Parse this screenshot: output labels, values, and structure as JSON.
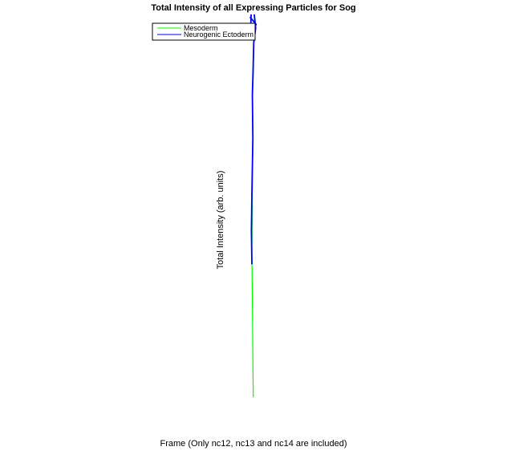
{
  "chart_data": {
    "type": "line",
    "title": "Total Intensity of all Expressing Particles for Sog",
    "xlabel": "Frame (Only nc12, nc13 and nc14 are included)",
    "ylabel": "Total Intensity (arb. units)",
    "grid": false,
    "legend_placement": "top-left",
    "colors": {
      "Mesoderm": "#00ff00",
      "Neurogenic Ectoderm": "#0000ff"
    },
    "xlim": [
      0,
      100
    ],
    "ylim": [
      0,
      100
    ],
    "series": [
      {
        "name": "Mesoderm",
        "x": [
          51.3,
          51.2,
          51.1,
          51.0,
          51.1,
          51.2,
          51.1,
          51.3,
          51.4,
          51.3,
          51.5,
          51.6
        ],
        "y": [
          0,
          10,
          27,
          38,
          58,
          70,
          80,
          88,
          95,
          98,
          100,
          110
        ]
      },
      {
        "name": "Neurogenic Ectoderm",
        "x": [
          51.0,
          50.9,
          51.0,
          51.2,
          51.1,
          51.3,
          51.2,
          51.4,
          51.8,
          51.0,
          50.7,
          51.9,
          50.6
        ],
        "y": [
          36,
          45,
          55,
          70,
          82,
          90,
          86,
          96,
          100,
          110,
          98,
          101,
          103
        ]
      }
    ]
  }
}
